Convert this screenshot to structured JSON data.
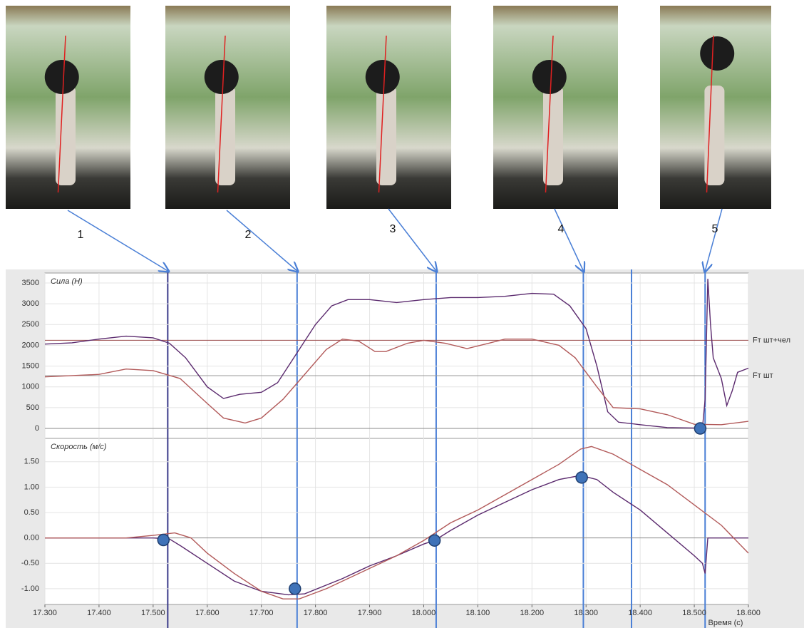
{
  "chart_data": [
    {
      "type": "line",
      "title": "Сила (Н)",
      "xlim": [
        17.3,
        18.6
      ],
      "ylim": [
        -240,
        3740
      ],
      "yticks": [
        0,
        500,
        1000,
        1500,
        2000,
        2500,
        3000,
        3500
      ],
      "grid": true,
      "series": [
        {
          "color": "#5b2a6e",
          "x": [
            17.3,
            17.35,
            17.4,
            17.45,
            17.5,
            17.53,
            17.56,
            17.6,
            17.63,
            17.66,
            17.7,
            17.73,
            17.76,
            17.8,
            17.83,
            17.86,
            17.9,
            17.95,
            18.0,
            18.05,
            18.1,
            18.15,
            18.2,
            18.24,
            18.27,
            18.3,
            18.32,
            18.34,
            18.36,
            18.4,
            18.45,
            18.5,
            18.515,
            18.52,
            18.525,
            18.53,
            18.535,
            18.55,
            18.56,
            18.57,
            18.58,
            18.6
          ],
          "values": [
            2030,
            2060,
            2150,
            2220,
            2180,
            2050,
            1700,
            1000,
            720,
            820,
            870,
            1100,
            1700,
            2500,
            2950,
            3100,
            3100,
            3030,
            3100,
            3150,
            3150,
            3180,
            3250,
            3230,
            2950,
            2400,
            1500,
            400,
            150,
            90,
            20,
            10,
            0,
            700,
            3600,
            2500,
            1700,
            1200,
            550,
            900,
            1350,
            1450
          ]
        },
        {
          "color": "#b25a5a",
          "x": [
            17.3,
            17.4,
            17.45,
            17.5,
            17.55,
            17.6,
            17.63,
            17.67,
            17.7,
            17.74,
            17.78,
            17.82,
            17.85,
            17.88,
            17.91,
            17.93,
            17.97,
            18.0,
            18.04,
            18.08,
            18.12,
            18.15,
            18.2,
            18.25,
            18.28,
            18.32,
            18.35,
            18.4,
            18.45,
            18.5,
            18.55,
            18.6
          ],
          "values": [
            1240,
            1300,
            1430,
            1390,
            1200,
            600,
            250,
            130,
            250,
            700,
            1300,
            1900,
            2150,
            2100,
            1850,
            1850,
            2050,
            2120,
            2050,
            1920,
            2050,
            2150,
            2150,
            2000,
            1700,
            1000,
            500,
            470,
            330,
            100,
            90,
            170
          ]
        }
      ],
      "reference_lines": [
        {
          "value": 2120,
          "label": "Fт шт+чел",
          "color": "#9a4a4a"
        },
        {
          "value": 1270,
          "label": "Fт шт",
          "color": "#999999"
        }
      ],
      "points": [
        {
          "x": 18.511,
          "y": 0
        }
      ]
    },
    {
      "type": "line",
      "title": "Скорость (м/с)",
      "x_label": "Время (с)",
      "xlim": [
        17.3,
        18.6
      ],
      "xticks": [
        {
          "value": 17.3,
          "label": "17.300"
        },
        {
          "value": 17.4,
          "label": "17.400"
        },
        {
          "value": 17.5,
          "label": "17.500"
        },
        {
          "value": 17.6,
          "label": "17.600"
        },
        {
          "value": 17.7,
          "label": "17.700"
        },
        {
          "value": 17.8,
          "label": "17.800"
        },
        {
          "value": 17.9,
          "label": "17.900"
        },
        {
          "value": 18.0,
          "label": "18.000"
        },
        {
          "value": 18.1,
          "label": "18.100"
        },
        {
          "value": 18.2,
          "label": "18.200"
        },
        {
          "value": 18.3,
          "label": "18.300"
        },
        {
          "value": 18.4,
          "label": "18.400"
        },
        {
          "value": 18.5,
          "label": "18.500"
        },
        {
          "value": 18.6,
          "label": "18.600"
        }
      ],
      "ylim": [
        -1.31,
        1.96
      ],
      "yticks": [
        {
          "value": -1,
          "label": "-1.00"
        },
        {
          "value": -0.5,
          "label": "-0.50"
        },
        {
          "value": 0,
          "label": "0.00"
        },
        {
          "value": 0.5,
          "label": "0.50"
        },
        {
          "value": 1,
          "label": "1.00"
        },
        {
          "value": 1.5,
          "label": "1.50"
        }
      ],
      "grid": true,
      "series": [
        {
          "color": "#5b2a6e",
          "x": [
            17.3,
            17.45,
            17.5,
            17.53,
            17.55,
            17.6,
            17.65,
            17.7,
            17.75,
            17.78,
            17.85,
            17.9,
            17.95,
            18.0,
            18.02,
            18.05,
            18.1,
            18.15,
            18.2,
            18.25,
            18.29,
            18.32,
            18.35,
            18.4,
            18.45,
            18.5,
            18.515,
            18.52,
            18.525,
            18.6
          ],
          "values": [
            0,
            0,
            0,
            -0.02,
            -0.15,
            -0.5,
            -0.85,
            -1.05,
            -1.12,
            -1.1,
            -0.8,
            -0.55,
            -0.35,
            -0.12,
            -0.05,
            0.15,
            0.45,
            0.7,
            0.95,
            1.15,
            1.23,
            1.15,
            0.9,
            0.55,
            0.1,
            -0.35,
            -0.5,
            -0.7,
            0,
            0
          ]
        },
        {
          "color": "#b25a5a",
          "x": [
            17.3,
            17.45,
            17.5,
            17.54,
            17.57,
            17.6,
            17.65,
            17.7,
            17.74,
            17.77,
            17.82,
            17.9,
            17.95,
            18.0,
            18.05,
            18.1,
            18.15,
            18.2,
            18.25,
            18.29,
            18.31,
            18.35,
            18.4,
            18.45,
            18.5,
            18.55,
            18.6
          ],
          "values": [
            0,
            0,
            0.05,
            0.1,
            0,
            -0.3,
            -0.7,
            -1.05,
            -1.2,
            -1.2,
            -1,
            -0.6,
            -0.35,
            -0.05,
            0.3,
            0.55,
            0.85,
            1.15,
            1.45,
            1.75,
            1.8,
            1.65,
            1.35,
            1.05,
            0.65,
            0.25,
            -0.3
          ]
        }
      ],
      "points": [
        {
          "x": 17.519,
          "y": -0.04
        },
        {
          "x": 17.762,
          "y": -1
        },
        {
          "x": 18.02,
          "y": -0.05
        },
        {
          "x": 18.292,
          "y": 1.19
        }
      ]
    }
  ],
  "frames": [
    {
      "label": "1",
      "time": 17.527,
      "color": "#3a3a8a"
    },
    {
      "label": "2",
      "time": 17.766,
      "color": "#4a7fd6"
    },
    {
      "label": "3",
      "time": 18.023,
      "color": "#4a7fd6"
    },
    {
      "label": "4",
      "time": 18.295,
      "color": "#4a7fd6"
    },
    {
      "label": "5",
      "time": 18.52,
      "color": "#4a7fd6"
    }
  ],
  "unlabeled_line_times": [
    18.384
  ]
}
